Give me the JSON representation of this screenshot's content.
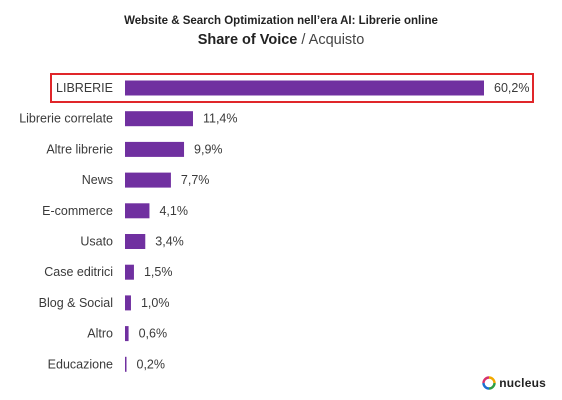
{
  "header": {
    "title": "Website & Search Optimization nell’era AI: Librerie online",
    "subtitle_bold": "Share of Voice",
    "subtitle_rest": " / Acquisto"
  },
  "brand": {
    "logo_text": "nucleus"
  },
  "colors": {
    "bar": "#7030a0",
    "highlight_border": "#e0262a"
  },
  "chart_data": {
    "type": "bar",
    "orientation": "horizontal",
    "categories": [
      "LIBRERIE",
      "Librerie correlate",
      "Altre librerie",
      "News",
      "E-commerce",
      "Usato",
      "Case editrici",
      "Blog & Social",
      "Altro",
      "Educazione"
    ],
    "values": [
      60.2,
      11.4,
      9.9,
      7.7,
      4.1,
      3.4,
      1.5,
      1.0,
      0.6,
      0.2
    ],
    "value_labels": [
      "60,2%",
      "11,4%",
      "9,9%",
      "7,7%",
      "4,1%",
      "3,4%",
      "1,5%",
      "1,0%",
      "0,6%",
      "0,2%"
    ],
    "highlighted_category": "LIBRERIE",
    "xlim": [
      0,
      60.2
    ]
  }
}
